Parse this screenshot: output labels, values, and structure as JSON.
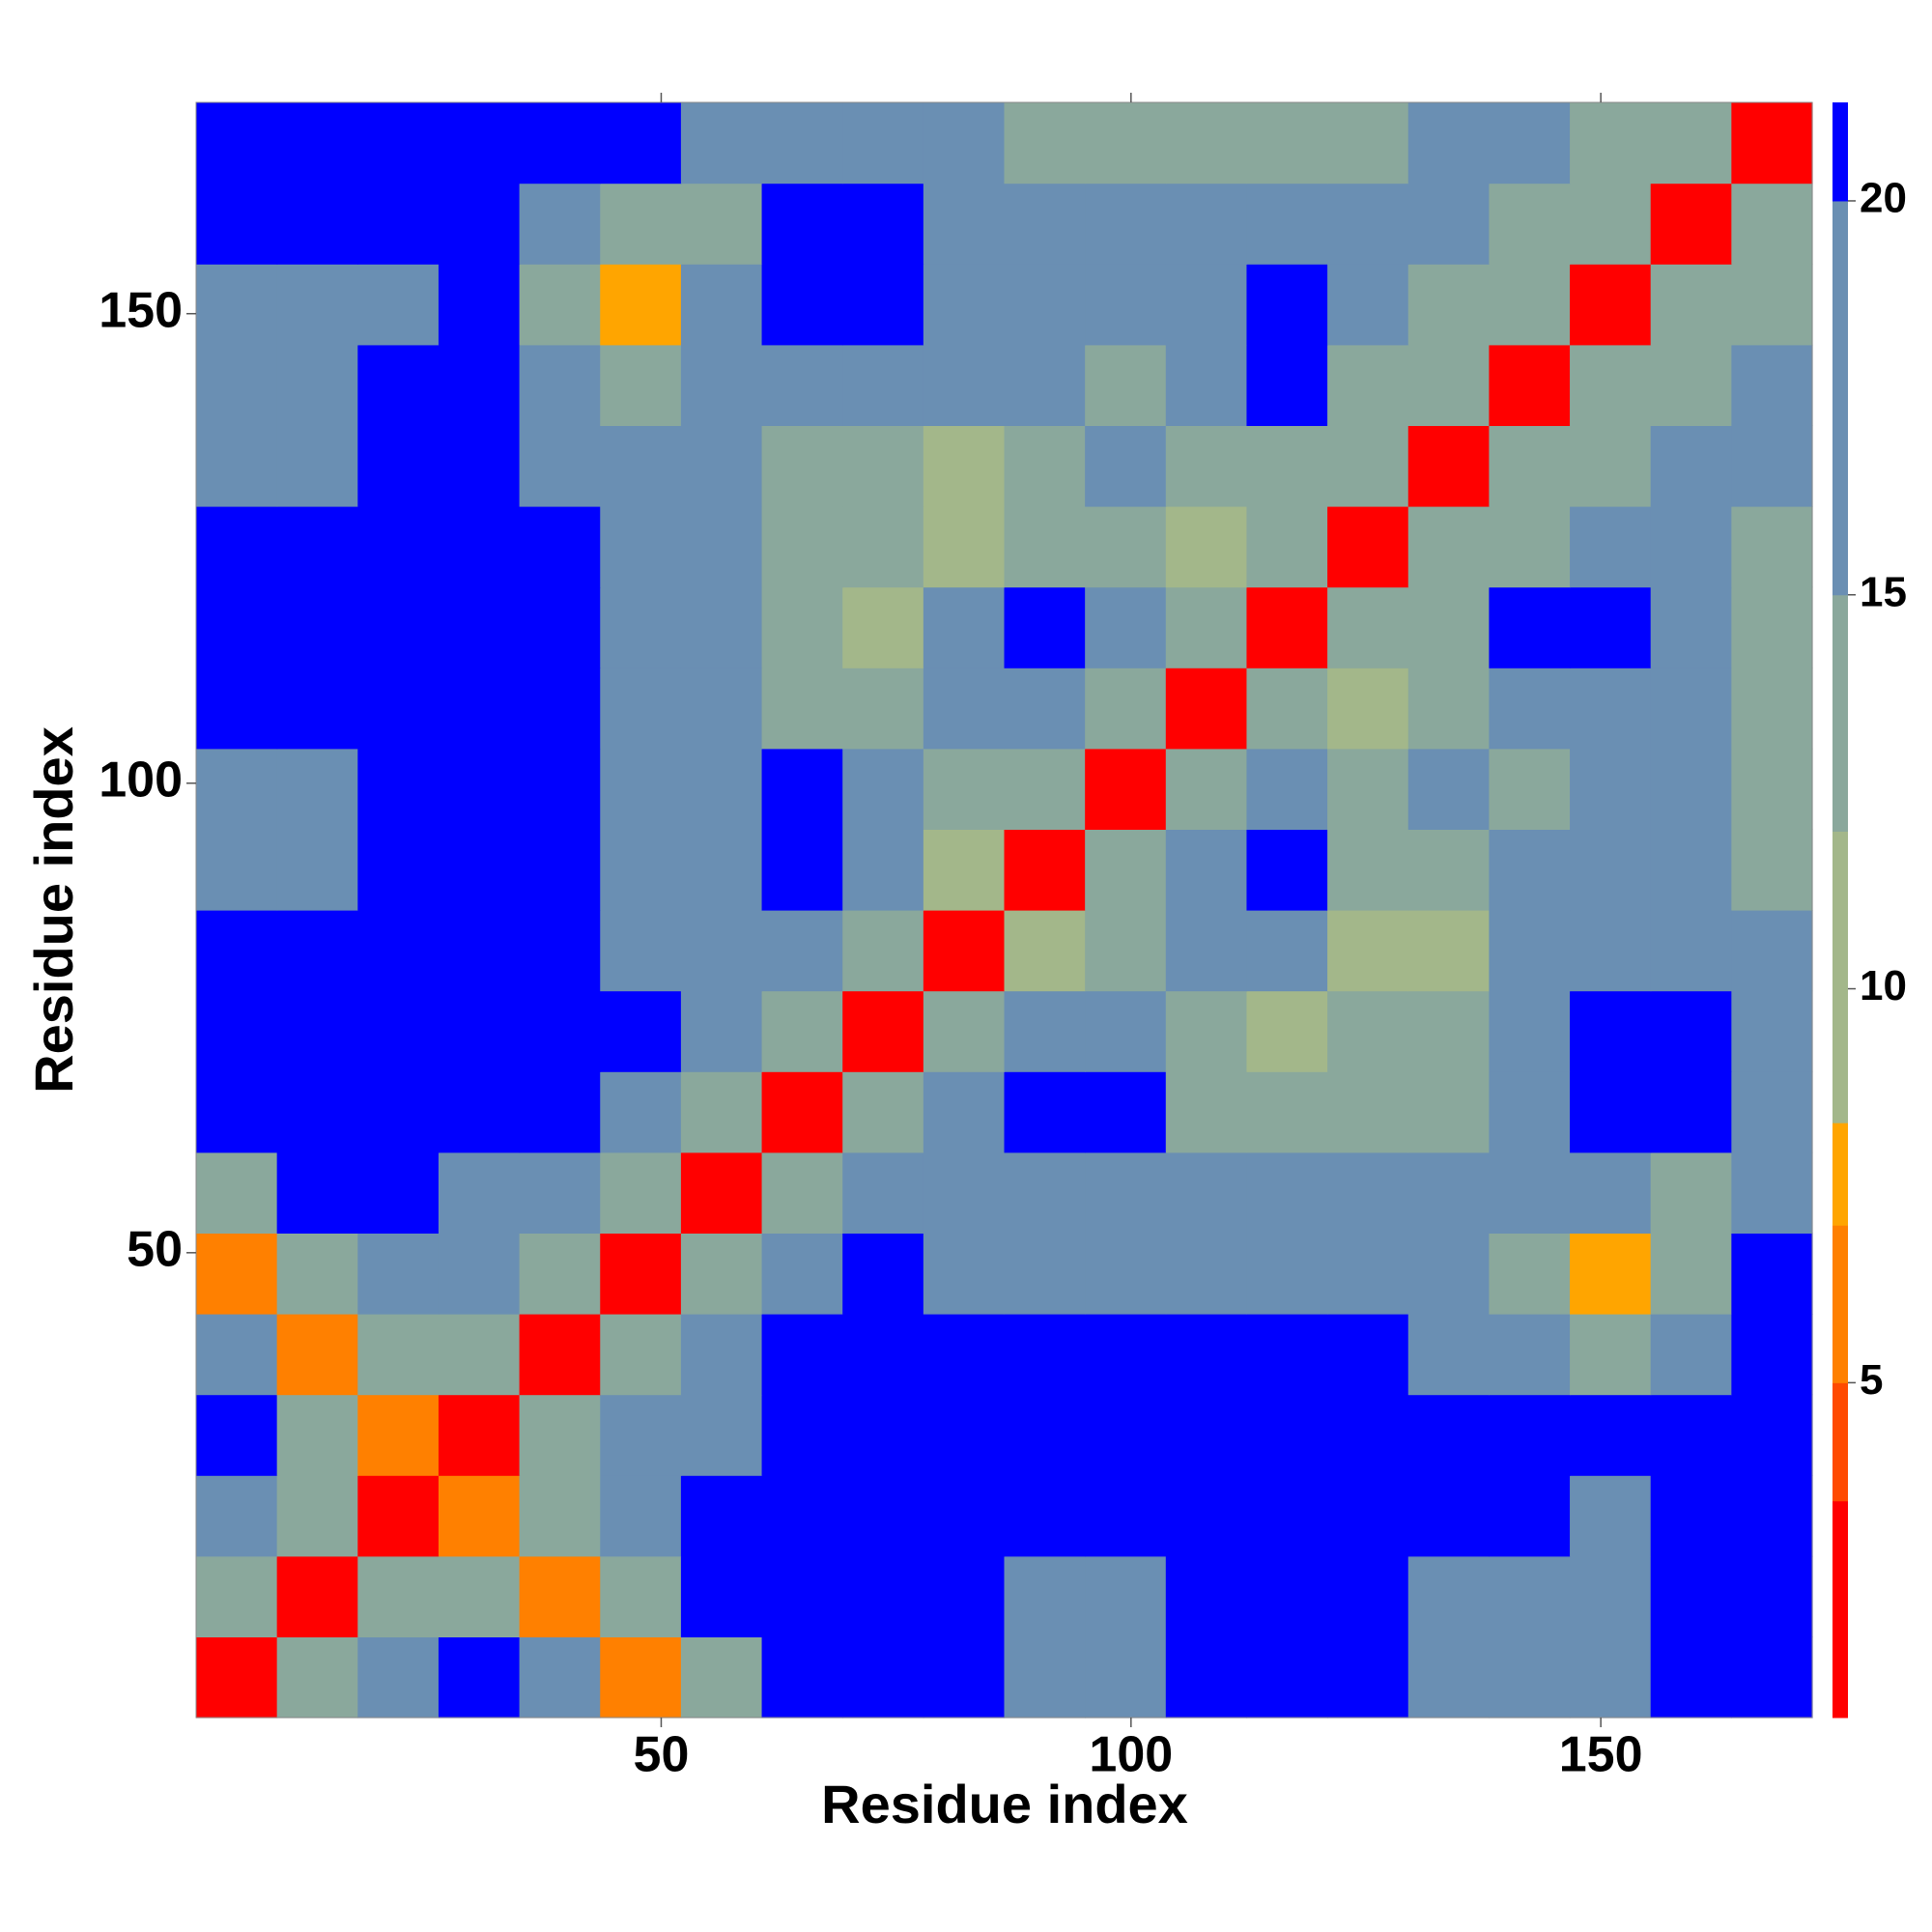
{
  "chart_data": {
    "type": "heatmap",
    "xlabel": "Residue index",
    "ylabel": "Residue index",
    "x": [
      4.8,
      13.4,
      22,
      30.6,
      39.2,
      47.8,
      56.4,
      65,
      73.6,
      82.2,
      90.8,
      99.4,
      108,
      116.6,
      125.2,
      133.8,
      142.4,
      151,
      159.6,
      168.2
    ],
    "y": [
      4.8,
      13.4,
      22,
      30.6,
      39.2,
      47.8,
      56.4,
      65,
      73.6,
      82.2,
      90.8,
      99.4,
      108,
      116.6,
      125.2,
      133.8,
      142.4,
      151,
      159.6,
      168.2
    ],
    "z": [
      [
        3,
        13,
        19,
        21,
        16,
        7,
        15,
        21,
        21,
        21,
        20,
        20,
        21,
        21,
        21,
        20,
        18,
        18,
        21,
        21
      ],
      [
        13,
        3,
        13,
        15,
        7,
        15,
        21,
        21,
        21,
        21,
        20,
        20,
        21,
        21,
        21,
        20,
        18,
        18,
        21,
        21
      ],
      [
        19,
        13,
        3,
        6,
        14,
        20,
        21,
        21,
        21,
        21,
        21,
        21,
        21,
        21,
        21,
        21,
        21,
        20,
        21,
        21
      ],
      [
        21,
        15,
        6,
        3,
        13,
        17,
        20,
        21,
        21,
        21,
        21,
        21,
        21,
        21,
        21,
        21,
        21,
        21,
        21,
        21
      ],
      [
        16,
        7,
        14,
        13,
        3,
        13,
        18,
        21,
        21,
        21,
        21,
        21,
        21,
        21,
        21,
        20,
        16,
        15,
        20,
        21
      ],
      [
        7,
        15,
        20,
        17,
        13,
        3,
        13,
        17,
        21,
        20,
        19,
        19,
        20,
        20,
        18,
        16,
        13,
        8,
        14,
        21
      ],
      [
        15,
        21,
        21,
        20,
        18,
        13,
        3,
        13,
        17,
        19,
        20,
        19,
        18,
        17,
        16,
        16,
        16,
        16,
        14,
        20
      ],
      [
        21,
        21,
        21,
        21,
        21,
        17,
        13,
        3,
        13,
        18,
        21,
        21,
        15,
        13,
        14,
        15,
        20,
        21,
        21,
        20
      ],
      [
        21,
        21,
        21,
        21,
        21,
        21,
        17,
        13,
        3,
        13,
        18,
        17,
        15,
        12,
        13,
        14,
        19,
        21,
        21,
        20
      ],
      [
        21,
        21,
        21,
        21,
        21,
        20,
        19,
        18,
        13,
        3,
        10,
        13,
        20,
        20,
        10,
        12,
        16,
        18,
        19,
        19
      ],
      [
        20,
        20,
        21,
        21,
        21,
        19,
        20,
        21,
        18,
        10,
        3,
        13,
        16,
        21,
        15,
        13,
        18,
        18,
        19,
        15
      ],
      [
        20,
        20,
        21,
        21,
        21,
        19,
        19,
        21,
        17,
        13,
        13,
        3,
        13,
        17,
        14,
        16,
        14,
        16,
        18,
        13
      ],
      [
        21,
        21,
        21,
        21,
        21,
        20,
        18,
        15,
        15,
        20,
        16,
        13,
        3,
        13,
        11,
        15,
        19,
        19,
        16,
        14
      ],
      [
        21,
        21,
        21,
        21,
        21,
        20,
        17,
        13,
        12,
        20,
        21,
        17,
        13,
        3,
        13,
        14,
        21,
        21,
        19,
        14
      ],
      [
        21,
        21,
        21,
        21,
        21,
        18,
        16,
        14,
        13,
        10,
        15,
        14,
        11,
        13,
        3,
        13,
        15,
        20,
        19,
        13
      ],
      [
        20,
        20,
        21,
        21,
        20,
        16,
        16,
        15,
        14,
        12,
        13,
        16,
        15,
        14,
        13,
        3,
        13,
        14,
        17,
        16
      ],
      [
        18,
        18,
        21,
        21,
        16,
        13,
        16,
        20,
        19,
        16,
        18,
        14,
        19,
        21,
        15,
        13,
        3,
        13,
        15,
        18
      ],
      [
        18,
        18,
        20,
        21,
        15,
        8,
        16,
        21,
        21,
        18,
        18,
        16,
        19,
        21,
        20,
        14,
        13,
        3,
        13,
        15
      ],
      [
        21,
        21,
        21,
        21,
        20,
        14,
        14,
        21,
        21,
        19,
        19,
        18,
        16,
        19,
        19,
        17,
        15,
        13,
        3,
        13
      ],
      [
        21,
        21,
        21,
        21,
        21,
        21,
        20,
        20,
        20,
        19,
        15,
        13,
        14,
        14,
        13,
        16,
        18,
        15,
        13,
        3
      ]
    ],
    "xlim": [
      0.5,
      172.5
    ],
    "ylim": [
      0.5,
      172.5
    ],
    "xticks": [
      50,
      100,
      150
    ],
    "yticks": [
      50,
      100,
      150
    ],
    "zlim": [
      0.75,
      21.25
    ],
    "zticks": [
      5,
      10,
      15,
      20
    ],
    "colorscale": [
      {
        "upto": 3.5,
        "color": "#ff0000"
      },
      {
        "upto": 5,
        "color": "#ff4a00"
      },
      {
        "upto": 7,
        "color": "#ff8000"
      },
      {
        "upto": 8.3,
        "color": "#ffa500"
      },
      {
        "upto": 12,
        "color": "#a3b78a"
      },
      {
        "upto": 15,
        "color": "#8aa89c"
      },
      {
        "upto": 20,
        "color": "#6a8fb3"
      },
      {
        "upto": 21.25,
        "color": "#0000ff"
      }
    ]
  }
}
